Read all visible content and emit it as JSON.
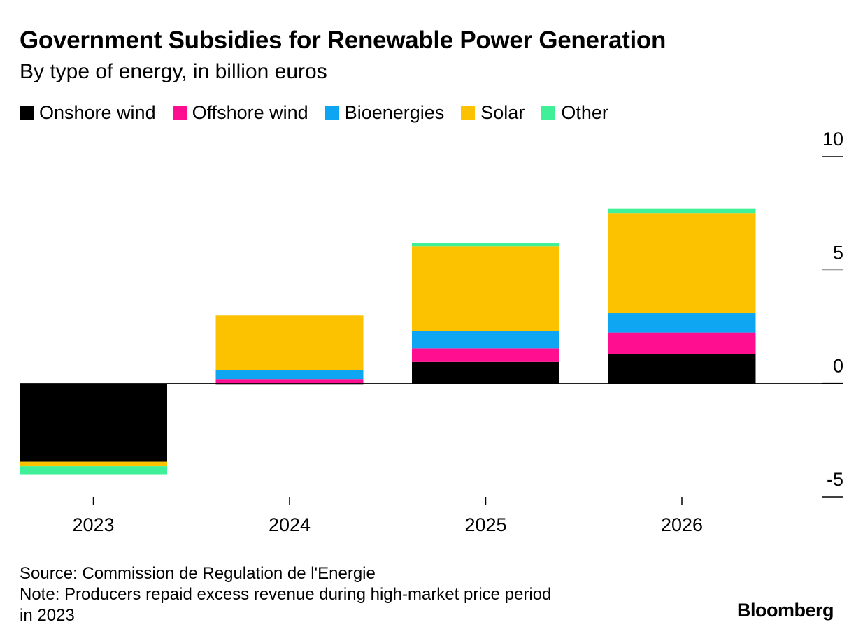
{
  "chart_data": {
    "type": "bar",
    "stacked": true,
    "title": "Government Subsidies for Renewable Power Generation",
    "subtitle": "By type of energy, in billion euros",
    "categories": [
      "2023",
      "2024",
      "2025",
      "2026"
    ],
    "series": [
      {
        "name": "Onshore wind",
        "color": "#000000",
        "values": [
          -3.45,
          -0.05,
          0.95,
          1.3
        ]
      },
      {
        "name": "Offshore wind",
        "color": "#ff0e8f",
        "values": [
          0.0,
          0.2,
          0.6,
          0.95
        ]
      },
      {
        "name": "Bioenergies",
        "color": "#0ea5f2",
        "values": [
          0.0,
          0.4,
          0.75,
          0.85
        ]
      },
      {
        "name": "Solar",
        "color": "#fcc200",
        "values": [
          -0.2,
          2.4,
          3.75,
          4.4
        ]
      },
      {
        "name": "Other",
        "color": "#3ff098",
        "values": [
          -0.35,
          0.0,
          0.15,
          0.2
        ]
      }
    ],
    "ylim": [
      -5,
      10
    ],
    "yticks": [
      -5,
      0,
      5,
      10
    ],
    "xlabel": "",
    "ylabel": "",
    "legend_position": "top-left",
    "grid": false,
    "y_axis_side": "right"
  },
  "footer": {
    "source": "Source: Commission de Regulation de l'Energie",
    "note_line1": "Note: Producers repaid excess revenue during high-market price period",
    "note_line2": "in 2023"
  },
  "brand": "Bloomberg"
}
